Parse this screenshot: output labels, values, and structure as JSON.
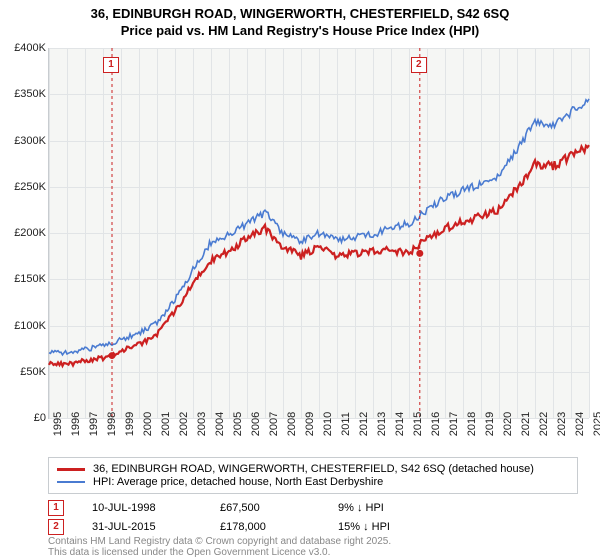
{
  "title_line1": "36, EDINBURGH ROAD, WINGERWORTH, CHESTERFIELD, S42 6SQ",
  "title_line2": "Price paid vs. HM Land Registry's House Price Index (HPI)",
  "chart": {
    "type": "line",
    "background_color": "#f5f6f4",
    "grid_color": "#e1e4e6",
    "axis_color": "#c8ccd0",
    "x_years": [
      1995,
      1996,
      1997,
      1998,
      1999,
      2000,
      2001,
      2002,
      2003,
      2004,
      2005,
      2006,
      2007,
      2008,
      2009,
      2010,
      2011,
      2012,
      2013,
      2014,
      2015,
      2016,
      2017,
      2018,
      2019,
      2020,
      2021,
      2022,
      2023,
      2024,
      2025
    ],
    "y_ticks": [
      0,
      50000,
      100000,
      150000,
      200000,
      250000,
      300000,
      350000,
      400000
    ],
    "y_tick_labels": [
      "£0",
      "£50K",
      "£100K",
      "£150K",
      "£200K",
      "£250K",
      "£300K",
      "£350K",
      "£400K"
    ],
    "ylim": [
      0,
      400000
    ],
    "series": [
      {
        "name": "property",
        "color": "#cc2020",
        "width": 2.2,
        "values_by_year": {
          "1995": 60000,
          "1996": 58000,
          "1997": 62000,
          "1998": 65000,
          "1999": 72000,
          "2000": 80000,
          "2001": 90000,
          "2002": 115000,
          "2003": 145000,
          "2004": 170000,
          "2005": 180000,
          "2006": 195000,
          "2007": 205000,
          "2008": 185000,
          "2009": 175000,
          "2010": 185000,
          "2011": 175000,
          "2012": 178000,
          "2013": 180000,
          "2014": 182000,
          "2015": 178000,
          "2016": 195000,
          "2017": 205000,
          "2018": 212000,
          "2019": 218000,
          "2020": 225000,
          "2021": 248000,
          "2022": 275000,
          "2023": 272000,
          "2024": 283000,
          "2025": 295000
        }
      },
      {
        "name": "hpi",
        "color": "#4a7bd1",
        "width": 1.6,
        "values_by_year": {
          "1995": 72000,
          "1996": 70000,
          "1997": 74000,
          "1998": 78000,
          "1999": 85000,
          "2000": 92000,
          "2001": 102000,
          "2002": 128000,
          "2003": 160000,
          "2004": 190000,
          "2005": 198000,
          "2006": 210000,
          "2007": 222000,
          "2008": 200000,
          "2009": 192000,
          "2010": 200000,
          "2011": 192000,
          "2012": 195000,
          "2013": 198000,
          "2014": 205000,
          "2015": 210000,
          "2016": 225000,
          "2017": 238000,
          "2018": 246000,
          "2019": 252000,
          "2020": 262000,
          "2021": 290000,
          "2022": 320000,
          "2023": 315000,
          "2024": 330000,
          "2025": 345000
        }
      }
    ],
    "markers": [
      {
        "n": "1",
        "year": 1998.5,
        "y": 390000,
        "dot_year": 1998.5,
        "dot_value": 67500
      },
      {
        "n": "2",
        "year": 2015.6,
        "y": 390000,
        "dot_year": 2015.6,
        "dot_value": 178000
      }
    ],
    "marker_line_color": "#cc2020",
    "marker_dot_color": "#cc2020",
    "axis_label_fontsize": 11
  },
  "legend": {
    "items": [
      {
        "color": "#cc2020",
        "label": "36, EDINBURGH ROAD, WINGERWORTH, CHESTERFIELD, S42 6SQ (detached house)",
        "thick": true
      },
      {
        "color": "#4a7bd1",
        "label": "HPI: Average price, detached house, North East Derbyshire",
        "thick": false
      }
    ]
  },
  "info_rows": [
    {
      "n": "1",
      "date": "10-JUL-1998",
      "price": "£67,500",
      "diff": "9% ↓ HPI"
    },
    {
      "n": "2",
      "date": "31-JUL-2015",
      "price": "£178,000",
      "diff": "15% ↓ HPI"
    }
  ],
  "footer_line1": "Contains HM Land Registry data © Crown copyright and database right 2025.",
  "footer_line2": "This data is licensed under the Open Government Licence v3.0."
}
